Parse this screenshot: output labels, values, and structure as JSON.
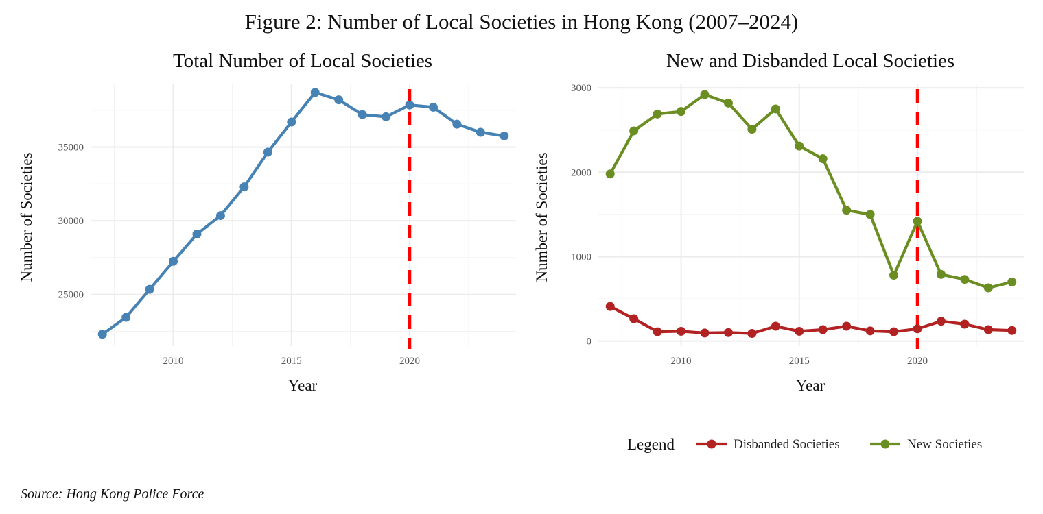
{
  "figure_title": "Figure 2: Number of Local Societies in Hong Kong (2007–2024)",
  "source": "Source: Hong Kong Police Force",
  "colors": {
    "total": "#4682B4",
    "new": "#6B8E23",
    "disbanded": "#B22222",
    "marker_line": "#FF0000",
    "grid_major": "#EBEBEB",
    "grid_minor": "#F3F3F3"
  },
  "chart_data": [
    {
      "type": "line",
      "title": "Total Number of Local Societies",
      "xlabel": "Year",
      "ylabel": "Number of Societies",
      "x": [
        2007,
        2008,
        2009,
        2010,
        2011,
        2012,
        2013,
        2014,
        2015,
        2016,
        2017,
        2018,
        2019,
        2020,
        2021,
        2022,
        2023,
        2024
      ],
      "series": [
        {
          "values": [
            22300,
            23450,
            25350,
            27250,
            29100,
            30350,
            32300,
            34650,
            36700,
            38700,
            38200,
            37200,
            37050,
            37850,
            37700,
            36550,
            36000,
            35750
          ]
        }
      ],
      "xlim": [
        2006.5,
        2024.5
      ],
      "ylim": [
        21500,
        39300
      ],
      "xticks": [
        2010,
        2015,
        2020
      ],
      "xtick_labels": [
        "2010",
        "2015",
        "2020"
      ],
      "yticks": [
        25000,
        30000,
        35000
      ],
      "ytick_labels": [
        "25000",
        "30000",
        "35000"
      ],
      "reference_line": {
        "x": 2020,
        "style": "dashed"
      },
      "grid": true
    },
    {
      "type": "line",
      "title": "New and Disbanded Local Societies",
      "xlabel": "Year",
      "ylabel": "Number of Societies",
      "x": [
        2007,
        2008,
        2009,
        2010,
        2011,
        2012,
        2013,
        2014,
        2015,
        2016,
        2017,
        2018,
        2019,
        2020,
        2021,
        2022,
        2023,
        2024
      ],
      "series": [
        {
          "name": "Disbanded Societies",
          "values": [
            410,
            265,
            110,
            115,
            95,
            100,
            90,
            175,
            115,
            135,
            175,
            120,
            110,
            145,
            235,
            200,
            135,
            125
          ]
        },
        {
          "name": "New Societies",
          "values": [
            1980,
            2490,
            2690,
            2720,
            2920,
            2820,
            2510,
            2750,
            2310,
            2160,
            1550,
            1500,
            780,
            1420,
            790,
            730,
            630,
            700
          ]
        }
      ],
      "xlim": [
        2006.5,
        2024.5
      ],
      "ylim": [
        -60,
        3050
      ],
      "xticks": [
        2010,
        2015,
        2020
      ],
      "xtick_labels": [
        "2010",
        "2015",
        "2020"
      ],
      "yticks": [
        0,
        1000,
        2000,
        3000
      ],
      "ytick_labels": [
        "0",
        "1000",
        "2000",
        "3000"
      ],
      "reference_line": {
        "x": 2020,
        "style": "dashed"
      },
      "grid": true,
      "legend": {
        "title": "Legend",
        "position": "bottom",
        "items": [
          "Disbanded Societies",
          "New Societies"
        ]
      }
    }
  ]
}
